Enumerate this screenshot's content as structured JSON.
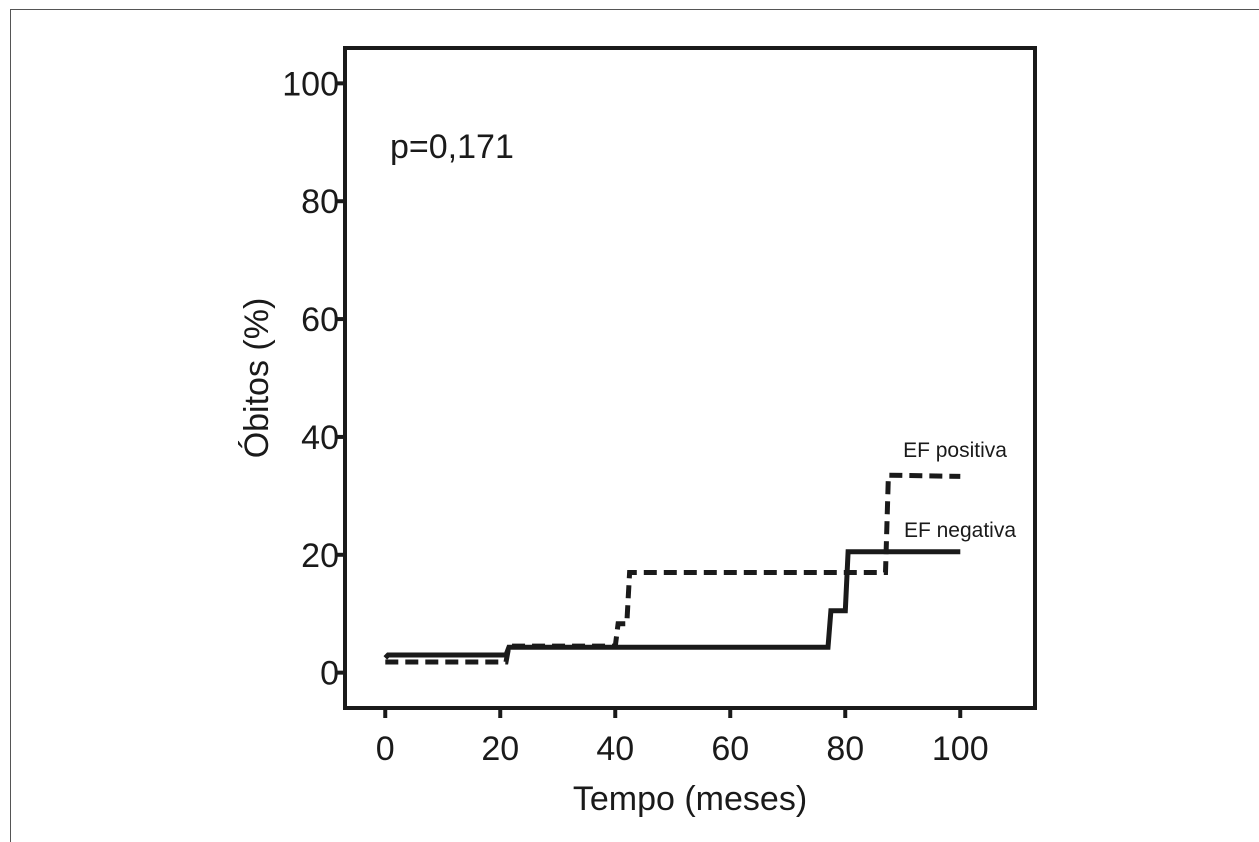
{
  "chart_data": {
    "type": "line",
    "step": true,
    "xlabel": "Tempo (meses)",
    "ylabel": "Óbitos (%)",
    "xlim": [
      -7,
      113
    ],
    "ylim": [
      -6,
      106
    ],
    "xticks": [
      0,
      20,
      40,
      60,
      80,
      100
    ],
    "yticks": [
      0,
      20,
      40,
      60,
      80,
      100
    ],
    "grid": false,
    "annotation": "p=0,171",
    "series": [
      {
        "name": "EF negativa",
        "style": "solid",
        "color": "#1a1a1a",
        "x": [
          0,
          0.5,
          21,
          21.5,
          77,
          77.5,
          80,
          80.5,
          100
        ],
        "y": [
          2.5,
          3.0,
          3.0,
          4.3,
          4.3,
          10.5,
          10.5,
          20.5,
          20.5
        ]
      },
      {
        "name": "EF positiva",
        "style": "dashed",
        "color": "#1a1a1a",
        "x": [
          0,
          21,
          21.5,
          40,
          40.5,
          42,
          42.5,
          87,
          87.5,
          100
        ],
        "y": [
          1.8,
          1.8,
          4.5,
          4.5,
          8.3,
          8.3,
          17.0,
          17.0,
          33.5,
          33.3
        ]
      }
    ]
  }
}
